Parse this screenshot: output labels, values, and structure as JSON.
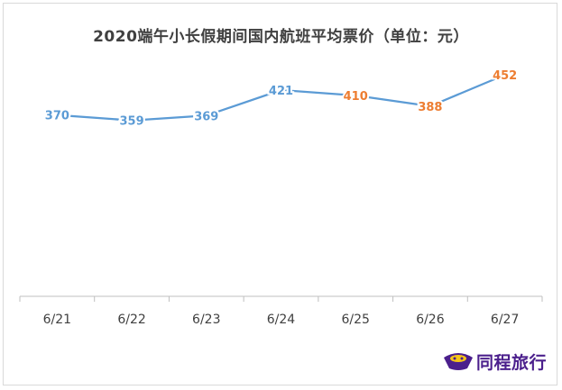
{
  "chart_data": {
    "type": "line",
    "title": "2020端午小长假期间国内航班平均票价（单位：元）",
    "categories": [
      "6/21",
      "6/22",
      "6/23",
      "6/24",
      "6/25",
      "6/26",
      "6/27"
    ],
    "series": [
      {
        "values": [
          370,
          359,
          369,
          421,
          410,
          388,
          452
        ],
        "line_color": "#5b9bd5"
      }
    ],
    "data_label_colors": [
      "#5b9bd5",
      "#5b9bd5",
      "#5b9bd5",
      "#5b9bd5",
      "#ed7d31",
      "#ed7d31",
      "#ed7d31"
    ],
    "xlabel": "",
    "ylabel": "",
    "ylim": [
      0,
      500
    ],
    "grid": false,
    "legend": "none"
  },
  "watermark": {
    "text": "同程旅行",
    "color": "#4b1f8c",
    "accent": "#f5c518"
  }
}
